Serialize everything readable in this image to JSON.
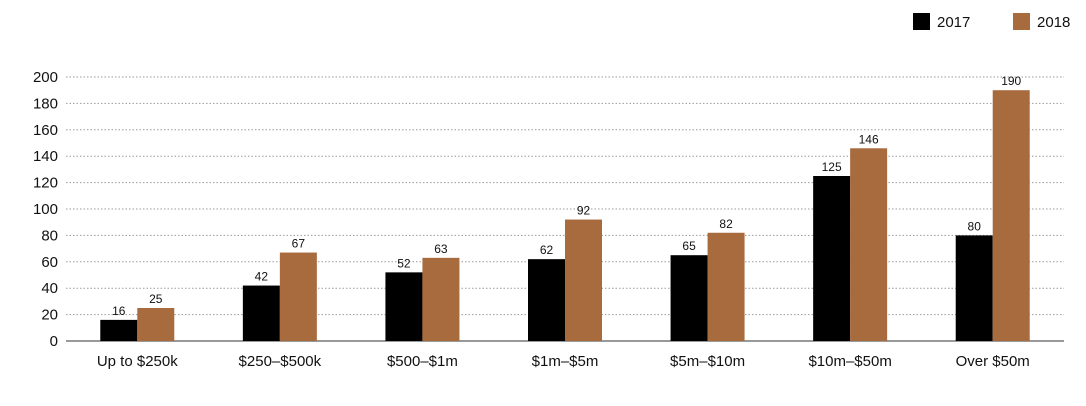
{
  "chart_data": {
    "type": "bar",
    "title": "",
    "xlabel": "",
    "ylabel": "",
    "categories": [
      "Up to $250k",
      "$250–$500k",
      "$500–$1m",
      "$1m–$5m",
      "$5m–$10m",
      "$10m–$50m",
      "Over $50m"
    ],
    "series": [
      {
        "name": "2017",
        "color": "#000000",
        "values": [
          16,
          42,
          52,
          62,
          65,
          125,
          80
        ]
      },
      {
        "name": "2018",
        "color": "#a86b3e",
        "values": [
          25,
          67,
          63,
          92,
          82,
          146,
          190
        ]
      }
    ],
    "ylim": [
      0,
      200
    ],
    "yticks": [
      0,
      20,
      40,
      60,
      80,
      100,
      120,
      140,
      160,
      180,
      200
    ],
    "grid": true,
    "legend_position": "top-right",
    "data_labels": true
  }
}
